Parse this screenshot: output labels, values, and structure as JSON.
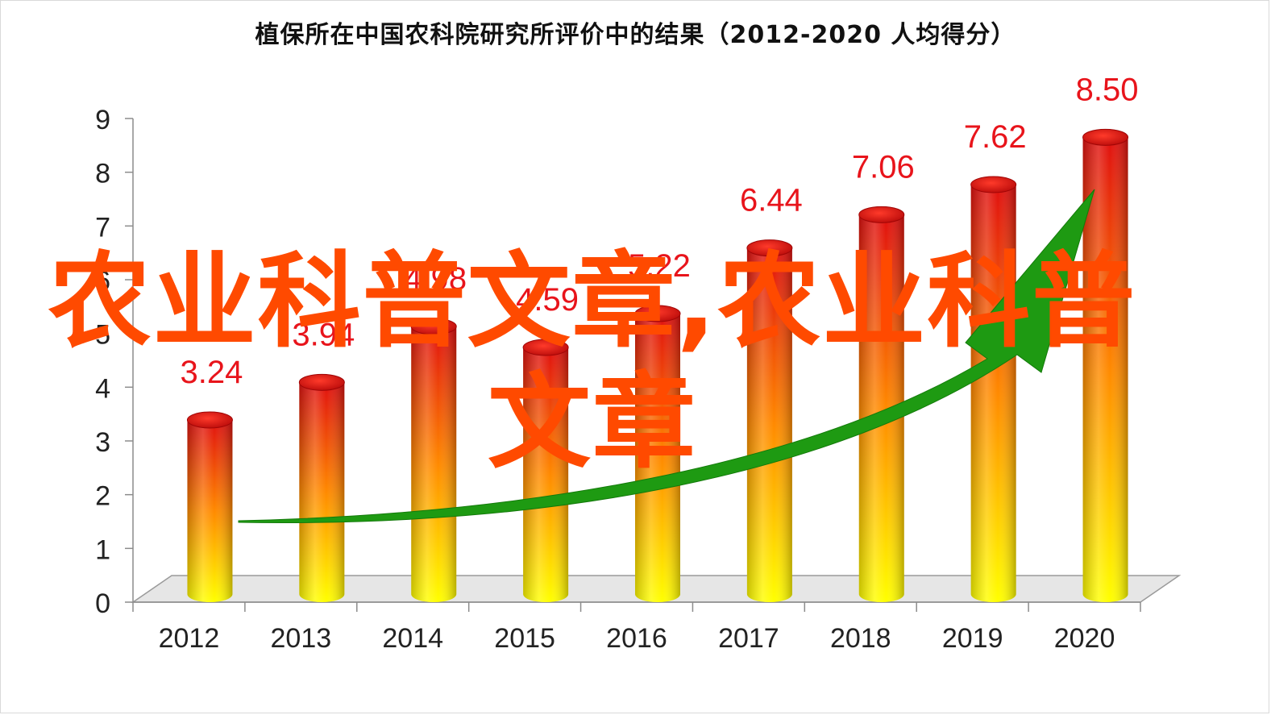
{
  "chart_data": {
    "type": "bar",
    "title": "植保所在中国农科院研究所评价中的结果（2012-2020  人均得分）",
    "categories": [
      "2012",
      "2013",
      "2014",
      "2015",
      "2016",
      "2017",
      "2018",
      "2019",
      "2020"
    ],
    "values": [
      3.24,
      3.94,
      4.98,
      4.59,
      5.22,
      6.44,
      7.06,
      7.62,
      8.5
    ],
    "data_labels": [
      "3.24",
      "3.94",
      "4.98",
      "4.59",
      "5.22",
      "6.44",
      "7.06",
      "7.62",
      "8.50"
    ],
    "ylim": [
      0,
      9
    ],
    "yticks": [
      "0",
      "1",
      "2",
      "3",
      "4",
      "5",
      "6",
      "7",
      "8",
      "9"
    ],
    "xlabel": "",
    "ylabel": "",
    "grid": false,
    "legend": "none",
    "colors": {
      "bar_top": "#e01010",
      "bar_mid": "#ff8a00",
      "bar_bottom": "#ffff00",
      "label": "#e8141b",
      "trend_arrow": "#1e9a12",
      "floor": "#e6e6e6"
    }
  },
  "overlay_text": "农业科普文章,农业科普文章",
  "overlay_color": "#ff4a00"
}
